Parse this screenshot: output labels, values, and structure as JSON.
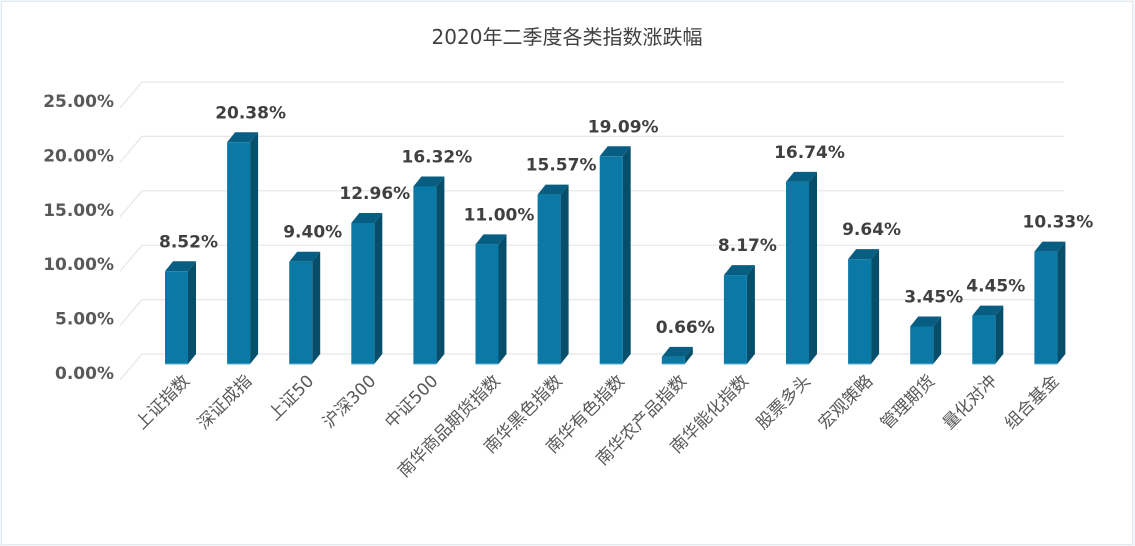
{
  "chart_data": {
    "type": "bar",
    "style": "3d-clustered-column",
    "title": "2020年二季度各类指数涨跌幅",
    "xlabel": "",
    "ylabel": "",
    "ylim": [
      0,
      25
    ],
    "yticks": [
      "0.00%",
      "5.00%",
      "10.00%",
      "15.00%",
      "20.00%",
      "25.00%"
    ],
    "grid": true,
    "legend": "none",
    "categories": [
      "上证指数",
      "深证成指",
      "上证50",
      "沪深300",
      "中证500",
      "南华商品期货指数",
      "南华黑色指数",
      "南华有色指数",
      "南华农产品指数",
      "南华能化指数",
      "股票多头",
      "宏观策略",
      "管理期货",
      "量化对冲",
      "组合基金"
    ],
    "values": [
      8.52,
      20.38,
      9.4,
      12.96,
      16.32,
      11.0,
      15.57,
      19.09,
      0.66,
      8.17,
      16.74,
      9.64,
      3.45,
      4.45,
      10.33
    ],
    "data_labels": [
      "8.52%",
      "20.38%",
      "9.40%",
      "12.96%",
      "16.32%",
      "11.00%",
      "15.57%",
      "19.09%",
      "0.66%",
      "8.17%",
      "16.74%",
      "9.64%",
      "3.45%",
      "4.45%",
      "10.33%"
    ],
    "colors": {
      "bar_front": "#0b79a6",
      "bar_side": "#064e6a",
      "bar_top": "#075e82",
      "grid": "#e6e6e6"
    }
  }
}
